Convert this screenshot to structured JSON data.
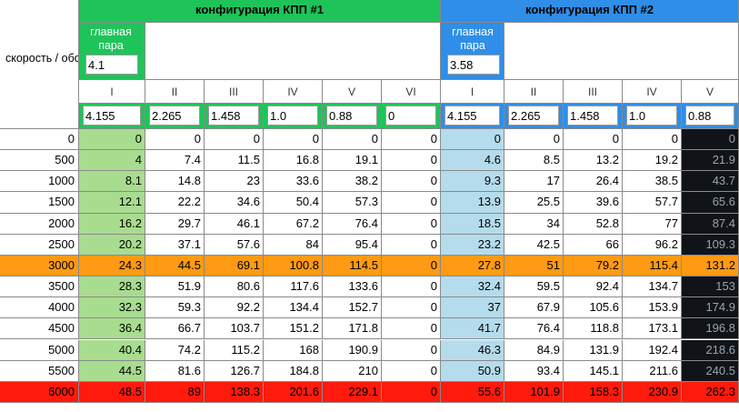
{
  "colors": {
    "config1_header": "#1ec45a",
    "config2_header": "#2f8ee8",
    "config1_col": "#a8dc8f",
    "config2_col": "#b5dcec",
    "highlight_row": "#ff9a14",
    "redline_row": "#ff1a0d",
    "dark_column": "#101418"
  },
  "speed_label": "скорость / обороты",
  "configs": [
    {
      "title": "конфигурация КПП #1",
      "main_pair_label": "главная пара",
      "main_pair_value": "4.1",
      "gears": [
        "I",
        "II",
        "III",
        "IV",
        "V",
        "VI"
      ],
      "ratios": [
        "4.155",
        "2.265",
        "1.458",
        "1.0",
        "0.88",
        "0"
      ]
    },
    {
      "title": "конфигурация КПП #2",
      "main_pair_label": "главная пара",
      "main_pair_value": "3.58",
      "gears": [
        "I",
        "II",
        "III",
        "IV",
        "V"
      ],
      "ratios": [
        "4.155",
        "2.265",
        "1.458",
        "1.0",
        "0.88"
      ]
    }
  ],
  "rows": [
    {
      "rpm": "0",
      "values": [
        "0",
        "0",
        "0",
        "0",
        "0",
        "0",
        "0",
        "0",
        "0",
        "0",
        "0"
      ]
    },
    {
      "rpm": "500",
      "values": [
        "4",
        "7.4",
        "11.5",
        "16.8",
        "19.1",
        "0",
        "4.6",
        "8.5",
        "13.2",
        "19.2",
        "21.9"
      ]
    },
    {
      "rpm": "1000",
      "values": [
        "8.1",
        "14.8",
        "23",
        "33.6",
        "38.2",
        "0",
        "9.3",
        "17",
        "26.4",
        "38.5",
        "43.7"
      ]
    },
    {
      "rpm": "1500",
      "values": [
        "12.1",
        "22.2",
        "34.6",
        "50.4",
        "57.3",
        "0",
        "13.9",
        "25.5",
        "39.6",
        "57.7",
        "65.6"
      ]
    },
    {
      "rpm": "2000",
      "values": [
        "16.2",
        "29.7",
        "46.1",
        "67.2",
        "76.4",
        "0",
        "18.5",
        "34",
        "52.8",
        "77",
        "87.4"
      ]
    },
    {
      "rpm": "2500",
      "values": [
        "20.2",
        "37.1",
        "57.6",
        "84",
        "95.4",
        "0",
        "23.2",
        "42.5",
        "66",
        "96.2",
        "109.3"
      ]
    },
    {
      "rpm": "3000",
      "highlight": "orange",
      "values": [
        "24.3",
        "44.5",
        "69.1",
        "100.8",
        "114.5",
        "0",
        "27.8",
        "51",
        "79.2",
        "115.4",
        "131.2"
      ]
    },
    {
      "rpm": "3500",
      "values": [
        "28.3",
        "51.9",
        "80.6",
        "117.6",
        "133.6",
        "0",
        "32.4",
        "59.5",
        "92.4",
        "134.7",
        "153"
      ]
    },
    {
      "rpm": "4000",
      "values": [
        "32.3",
        "59.3",
        "92.2",
        "134.4",
        "152.7",
        "0",
        "37",
        "67.9",
        "105.6",
        "153.9",
        "174.9"
      ]
    },
    {
      "rpm": "4500",
      "values": [
        "36.4",
        "66.7",
        "103.7",
        "151.2",
        "171.8",
        "0",
        "41.7",
        "76.4",
        "118.8",
        "173.1",
        "196.8"
      ]
    },
    {
      "rpm": "5000",
      "values": [
        "40.4",
        "74.2",
        "115.2",
        "168",
        "190.9",
        "0",
        "46.3",
        "84.9",
        "131.9",
        "192.4",
        "218.6"
      ]
    },
    {
      "rpm": "5500",
      "values": [
        "44.5",
        "81.6",
        "126.7",
        "184.8",
        "210",
        "0",
        "50.9",
        "93.4",
        "145.1",
        "211.6",
        "240.5"
      ]
    },
    {
      "rpm": "6000",
      "highlight": "red",
      "values": [
        "48.5",
        "89",
        "138.3",
        "201.6",
        "229.1",
        "0",
        "55.6",
        "101.9",
        "158.3",
        "230.9",
        "262.3"
      ]
    }
  ]
}
